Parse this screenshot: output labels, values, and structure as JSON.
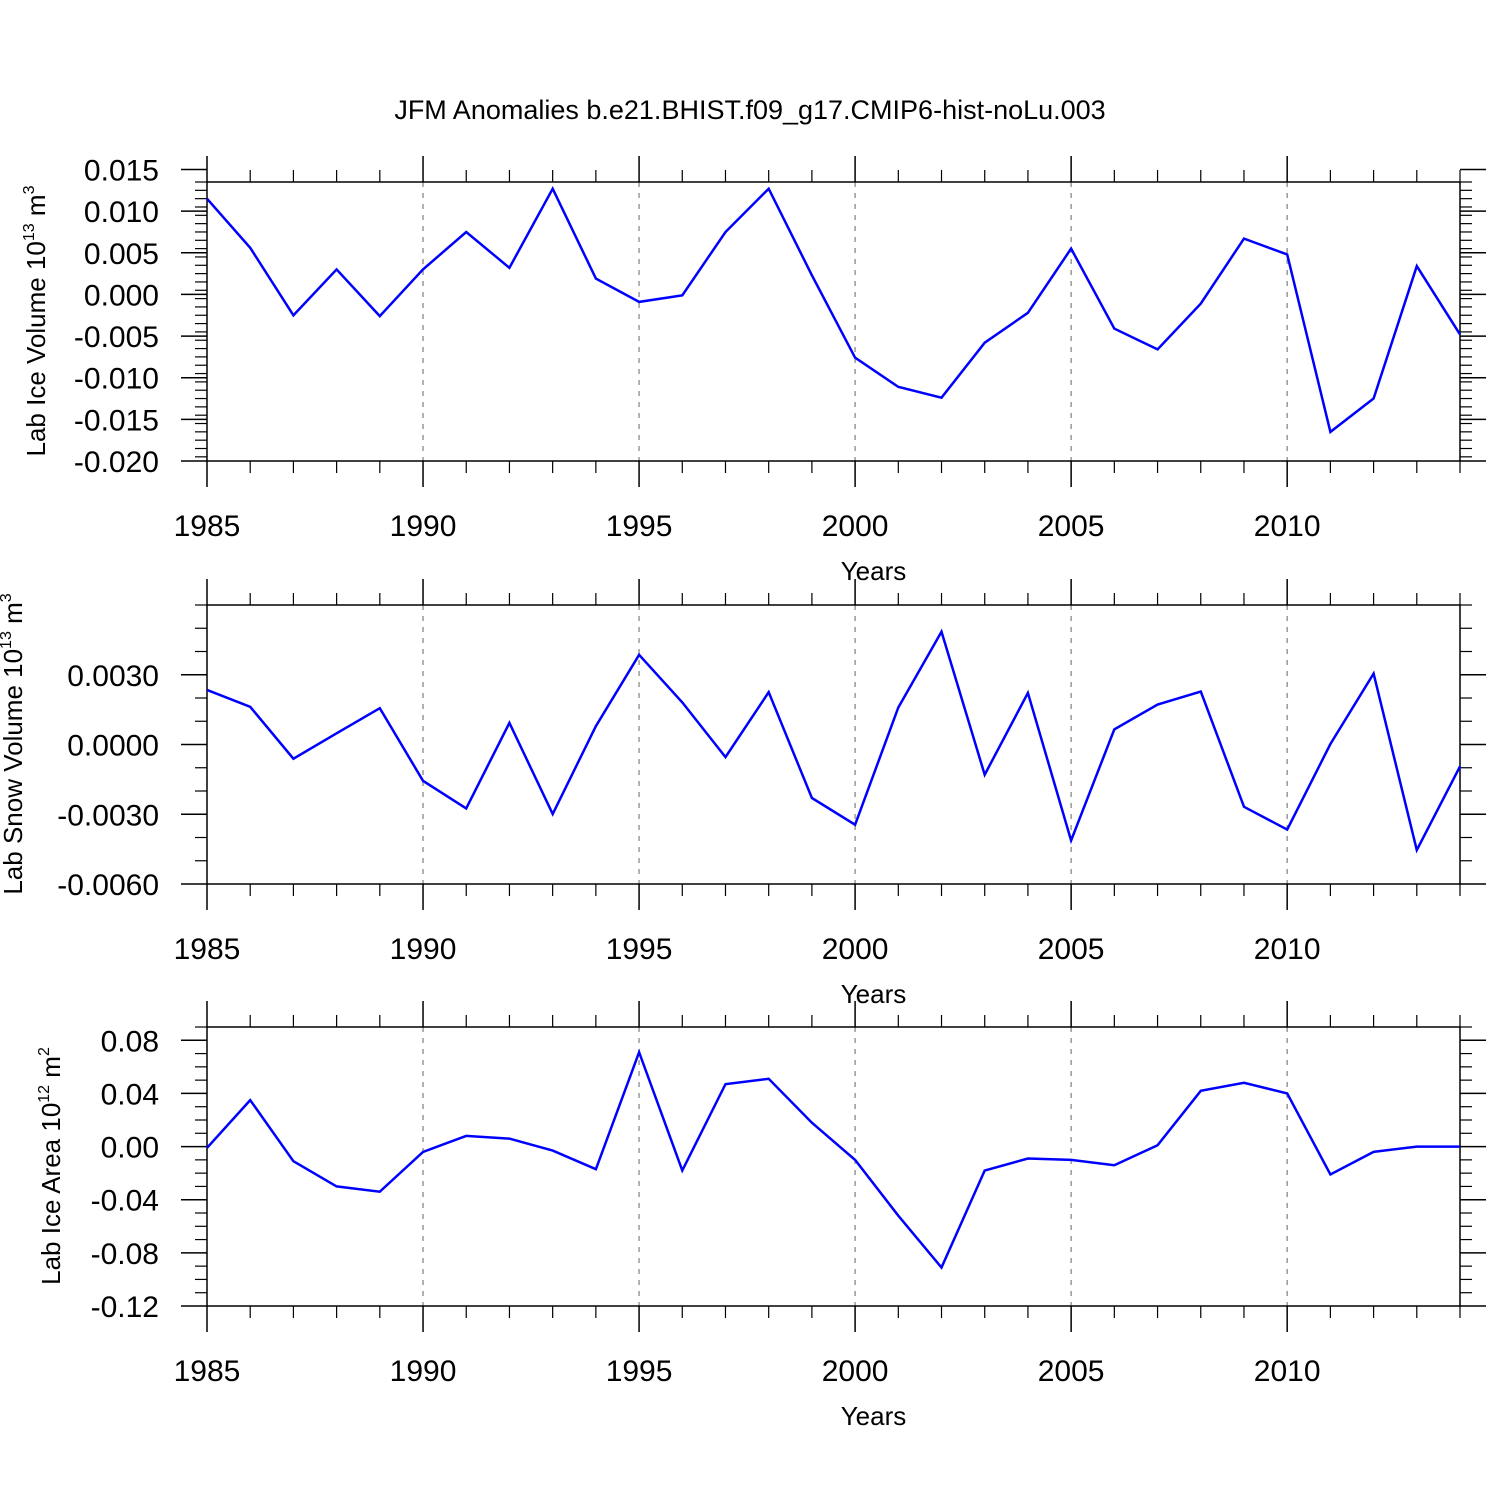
{
  "title": "JFM Anomalies b.e21.BHIST.f09_g17.CMIP6-hist-noLu.003",
  "colors": {
    "line": "#0000ff",
    "axis": "#000000",
    "grid": "#999999"
  },
  "chart_data": [
    {
      "type": "line",
      "ylabel": "Lab Ice Volume 10",
      "ylabel_exp": "13",
      "ylabel_unit": " m",
      "ylabel_unit_exp": "3",
      "xlabel": "Years",
      "xlim": [
        1985,
        2014
      ],
      "ylim": [
        -0.02,
        0.0135
      ],
      "yticks": [
        0.015,
        0.01,
        0.005,
        0.0,
        -0.005,
        -0.01,
        -0.015,
        -0.02
      ],
      "ytick_labels": [
        "0.015",
        "0.010",
        "0.005",
        "0.000",
        "-0.005",
        "-0.010",
        "-0.015",
        "-0.020"
      ],
      "yminor": [
        0.0135,
        0.0125,
        0.0115,
        0.0105,
        0.0095,
        0.0085,
        0.0075,
        0.0065,
        0.0055,
        0.0045,
        0.0035,
        0.0025,
        0.0015,
        0.0005,
        -0.0005,
        -0.0015,
        -0.0025,
        -0.0035,
        -0.0045,
        -0.0055,
        -0.0065,
        -0.0075,
        -0.0085,
        -0.0095,
        -0.0105,
        -0.0115,
        -0.0125,
        -0.0135,
        -0.0145,
        -0.0155,
        -0.0165,
        -0.0175,
        -0.0185,
        -0.0195
      ],
      "xticks": [
        1985,
        1990,
        1995,
        2000,
        2005,
        2010
      ],
      "xtick_labels": [
        "1985",
        "1990",
        "1995",
        "2000",
        "2005",
        "2010"
      ],
      "x": [
        1985,
        1986,
        1987,
        1988,
        1989,
        1990,
        1991,
        1992,
        1993,
        1994,
        1995,
        1996,
        1997,
        1998,
        1999,
        2000,
        2001,
        2002,
        2003,
        2004,
        2005,
        2006,
        2007,
        2008,
        2009,
        2010,
        2011,
        2012,
        2013,
        2014
      ],
      "values": [
        0.0115,
        0.0056,
        -0.0025,
        0.003,
        -0.0026,
        0.003,
        0.0075,
        0.0032,
        0.0127,
        0.0019,
        -0.0009,
        -0.0001,
        0.0075,
        0.0127,
        0.0023,
        -0.0076,
        -0.0111,
        -0.0124,
        -0.0058,
        -0.0022,
        0.0055,
        -0.0041,
        -0.0066,
        -0.0011,
        0.0067,
        0.0048,
        -0.0165,
        -0.0125,
        0.0034,
        -0.0048
      ]
    },
    {
      "type": "line",
      "ylabel": "Lab Snow Volume 10",
      "ylabel_exp": "13",
      "ylabel_unit": " m",
      "ylabel_unit_exp": "3",
      "xlabel": "Years",
      "xlim": [
        1985,
        2014
      ],
      "ylim": [
        -0.006,
        0.006
      ],
      "yticks": [
        0.003,
        0.0,
        -0.003,
        -0.006
      ],
      "ytick_labels": [
        "0.0030",
        "0.0000",
        "-0.0030",
        "-0.0060"
      ],
      "yminor": [
        0.006,
        0.005,
        0.004,
        0.002,
        0.001,
        -0.001,
        -0.002,
        -0.004,
        -0.005
      ],
      "xticks": [
        1985,
        1990,
        1995,
        2000,
        2005,
        2010
      ],
      "xtick_labels": [
        "1985",
        "1990",
        "1995",
        "2000",
        "2005",
        "2010"
      ],
      "x": [
        1985,
        1986,
        1987,
        1988,
        1989,
        1990,
        1991,
        1992,
        1993,
        1994,
        1995,
        1996,
        1997,
        1998,
        1999,
        2000,
        2001,
        2002,
        2003,
        2004,
        2005,
        2006,
        2007,
        2008,
        2009,
        2010,
        2011,
        2012,
        2013,
        2014
      ],
      "values": [
        0.00235,
        0.00162,
        -0.00061,
        0.00048,
        0.00156,
        -0.00156,
        -0.00275,
        0.00093,
        -0.00299,
        0.00079,
        0.00386,
        0.00181,
        -0.00054,
        0.00225,
        -0.0023,
        -0.00345,
        0.00159,
        0.00485,
        -0.0013,
        0.00222,
        -0.00413,
        0.00065,
        0.00172,
        0.00228,
        -0.00268,
        -0.00366,
        2e-05,
        0.00305,
        -0.00454,
        -0.00094
      ]
    },
    {
      "type": "line",
      "ylabel": "Lab Ice Area 10",
      "ylabel_exp": "12",
      "ylabel_unit": " m",
      "ylabel_unit_exp": "2",
      "xlabel": "Years",
      "xlim": [
        1985,
        2014
      ],
      "ylim": [
        -0.12,
        0.09
      ],
      "yticks": [
        0.08,
        0.04,
        0.0,
        -0.04,
        -0.08,
        -0.12
      ],
      "ytick_labels": [
        "0.08",
        "0.04",
        "0.00",
        "-0.04",
        "-0.08",
        "-0.12"
      ],
      "yminor": [
        0.09,
        0.07,
        0.06,
        0.05,
        0.03,
        0.02,
        0.01,
        -0.01,
        -0.02,
        -0.03,
        -0.05,
        -0.06,
        -0.07,
        -0.09,
        -0.1,
        -0.11
      ],
      "xticks": [
        1985,
        1990,
        1995,
        2000,
        2005,
        2010
      ],
      "xtick_labels": [
        "1985",
        "1990",
        "1995",
        "2000",
        "2005",
        "2010"
      ],
      "x": [
        1985,
        1986,
        1987,
        1988,
        1989,
        1990,
        1991,
        1992,
        1993,
        1994,
        1995,
        1996,
        1997,
        1998,
        1999,
        2000,
        2001,
        2002,
        2003,
        2004,
        2005,
        2006,
        2007,
        2008,
        2009,
        2010,
        2011,
        2012,
        2013,
        2014
      ],
      "values": [
        -0.001,
        0.035,
        -0.011,
        -0.03,
        -0.034,
        -0.004,
        0.008,
        0.006,
        -0.003,
        -0.017,
        0.071,
        -0.018,
        0.047,
        0.051,
        0.018,
        -0.01,
        -0.052,
        -0.091,
        -0.018,
        -0.009,
        -0.01,
        -0.014,
        0.001,
        0.042,
        0.048,
        0.04,
        -0.021,
        -0.004,
        0.0,
        0.0
      ]
    }
  ]
}
